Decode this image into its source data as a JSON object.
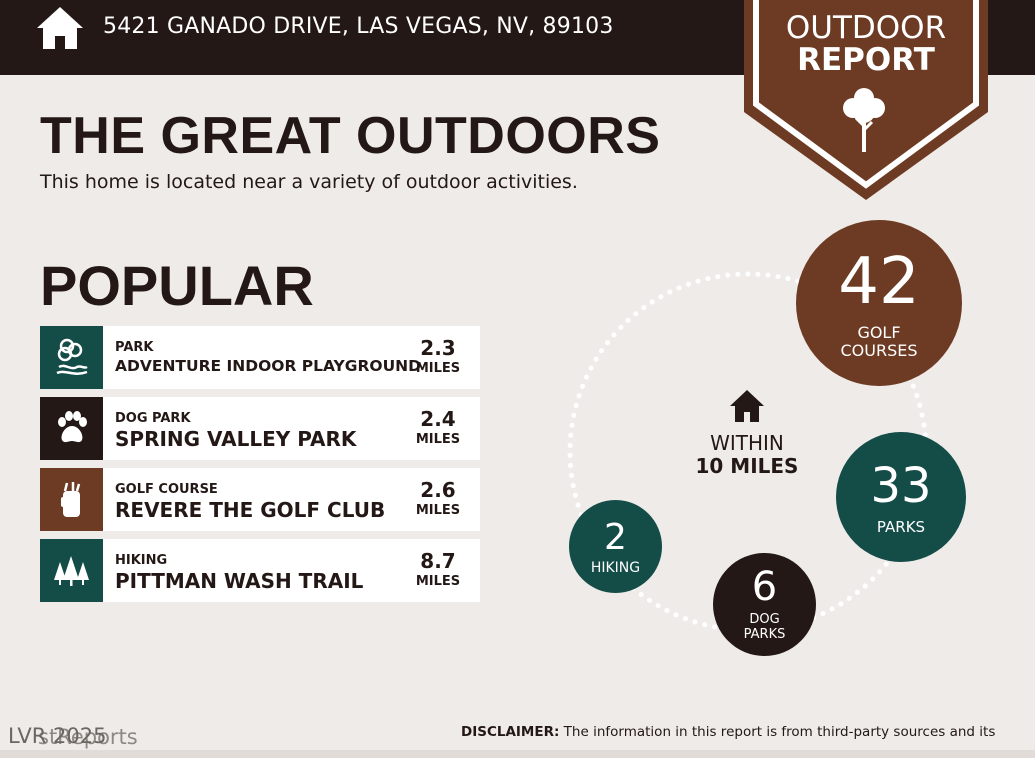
{
  "header": {
    "address": "5421 GANADO DRIVE, LAS VEGAS, NV, 89103",
    "badge_line1": "OUTDOOR",
    "badge_line2": "REPORT"
  },
  "hero": {
    "title": "THE GREAT OUTDOORS",
    "subtitle": "This home is located near a variety of outdoor activities."
  },
  "popular": {
    "title": "POPULAR",
    "items": [
      {
        "category": "PARK",
        "name": "ADVENTURE INDOOR PLAYGROUND",
        "distance": "2.3",
        "unit": "MILES",
        "icon": "park-icon",
        "color": "#144c48"
      },
      {
        "category": "DOG PARK",
        "name": "SPRING VALLEY PARK",
        "distance": "2.4",
        "unit": "MILES",
        "icon": "paw-icon",
        "color": "#231815"
      },
      {
        "category": "GOLF COURSE",
        "name": "REVERE THE GOLF CLUB",
        "distance": "2.6",
        "unit": "MILES",
        "icon": "golf-bag-icon",
        "color": "#6d3a23"
      },
      {
        "category": "HIKING",
        "name": "PITTMAN WASH TRAIL",
        "distance": "8.7",
        "unit": "MILES",
        "icon": "pine-trees-icon",
        "color": "#144c48"
      }
    ]
  },
  "summary": {
    "within_label": "WITHIN",
    "within_miles": "10 MILES",
    "golf": {
      "count": "42",
      "label_line1": "GOLF",
      "label_line2": "COURSES",
      "color": "#6d3a23"
    },
    "parks": {
      "count": "33",
      "label": "PARKS",
      "color": "#144c48"
    },
    "hiking": {
      "count": "2",
      "label": "HIKING",
      "color": "#144c48"
    },
    "dog_parks": {
      "count": "6",
      "label_line1": "DOG",
      "label_line2": "PARKS",
      "color": "#231815"
    }
  },
  "footer": {
    "watermark": "LVR 2025",
    "brand": "stReports",
    "disclaimer_label": "DISCLAIMER:",
    "disclaimer_text": " The information in this report is from third-party sources and its"
  }
}
